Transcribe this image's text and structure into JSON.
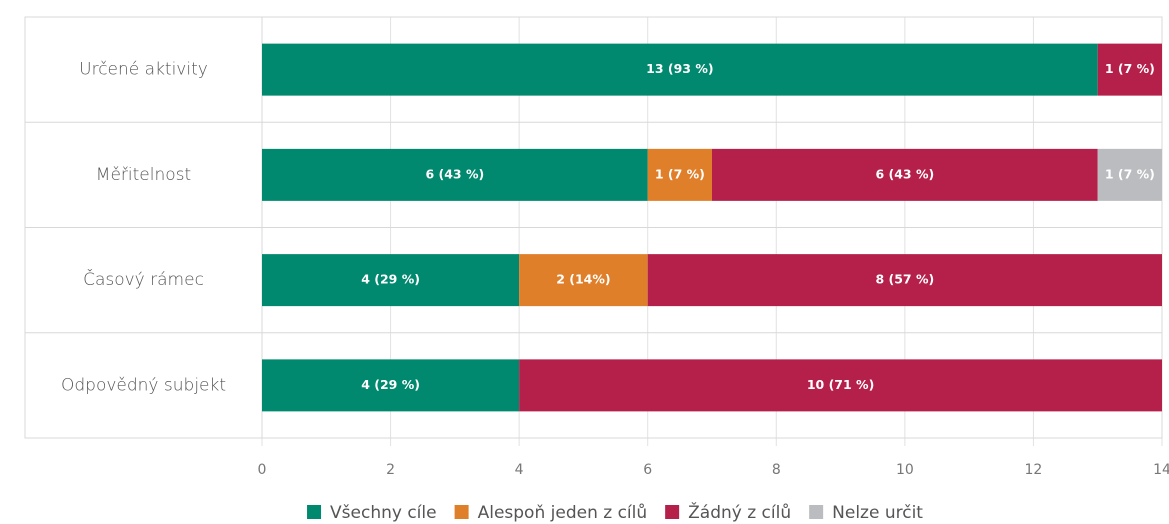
{
  "chart_data": {
    "type": "stacked-bar-horizontal",
    "categories": [
      "Určené aktivity",
      "Měřitelnost",
      "Časový rámec",
      "Odpovědný subjekt"
    ],
    "series": [
      {
        "name": "Všechny cíle",
        "color": "#00896f",
        "values": [
          13,
          6,
          4,
          4
        ],
        "value_labels": [
          "13 (93 %)",
          "6 (43 %)",
          "4 (29 %)",
          "4 (29 %)"
        ]
      },
      {
        "name": "Alespoň jeden z cílů",
        "color": "#e07f2a",
        "values": [
          0,
          1,
          2,
          0
        ],
        "value_labels": [
          null,
          "1 (7 %)",
          "2 (14%)",
          null
        ]
      },
      {
        "name": "Žádný z cílů",
        "color": "#b5204a",
        "values": [
          1,
          6,
          8,
          10
        ],
        "value_labels": [
          "1 (7 %)",
          "6 (43 %)",
          "8 (57 %)",
          "10 (71 %)"
        ]
      },
      {
        "name": "Nelze určit",
        "color": "#bbbcbf",
        "values": [
          0,
          1,
          0,
          0
        ],
        "value_labels": [
          null,
          "1 (7 %)",
          null,
          null
        ]
      }
    ],
    "xlim": [
      0,
      14
    ],
    "xticks": [
      0,
      2,
      4,
      6,
      8,
      10,
      12,
      14
    ],
    "grid": true,
    "legend": "bottom"
  }
}
